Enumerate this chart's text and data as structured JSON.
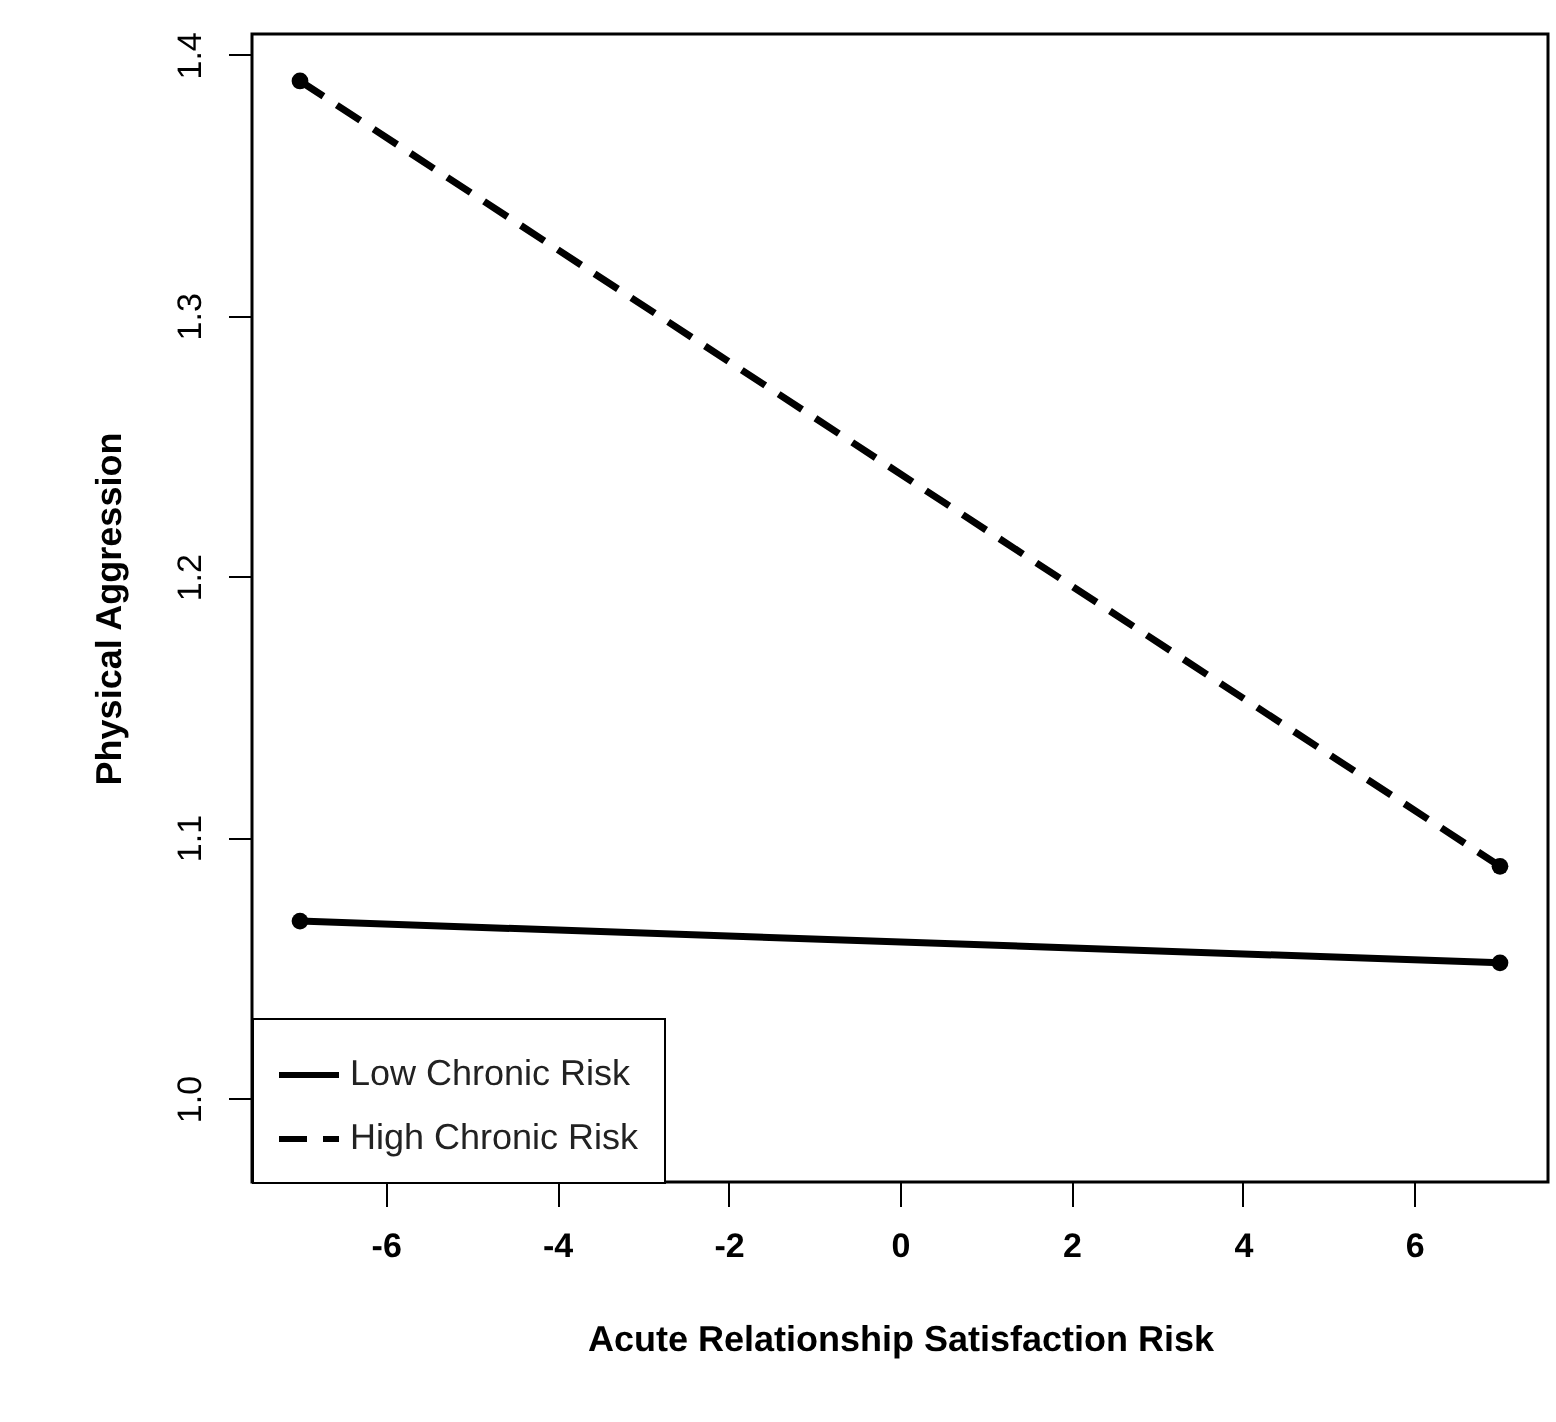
{
  "chart_data": {
    "type": "line",
    "xlabel": "Acute Relationship Satisfaction Risk",
    "ylabel": "Physical Aggression",
    "x": [
      -7,
      7
    ],
    "series": [
      {
        "name": "Low Chronic Risk",
        "color": "#000000",
        "line_style": "solid",
        "values": [
          1.068,
          1.052
        ]
      },
      {
        "name": "High Chronic Risk",
        "color": "#000000",
        "line_style": "dashed",
        "values": [
          1.39,
          1.089
        ]
      }
    ],
    "xlim": [
      -7.56,
      7.56
    ],
    "xticks": [
      -6,
      -4,
      -2,
      0,
      2,
      4,
      6
    ],
    "ylim": [
      0.968,
      1.408
    ],
    "yticks": [
      {
        "value": 1,
        "label": "1.0"
      },
      1.1,
      1.2,
      1.3,
      1.4
    ],
    "grid": false,
    "legend": "bottom left",
    "marker": "circle"
  }
}
